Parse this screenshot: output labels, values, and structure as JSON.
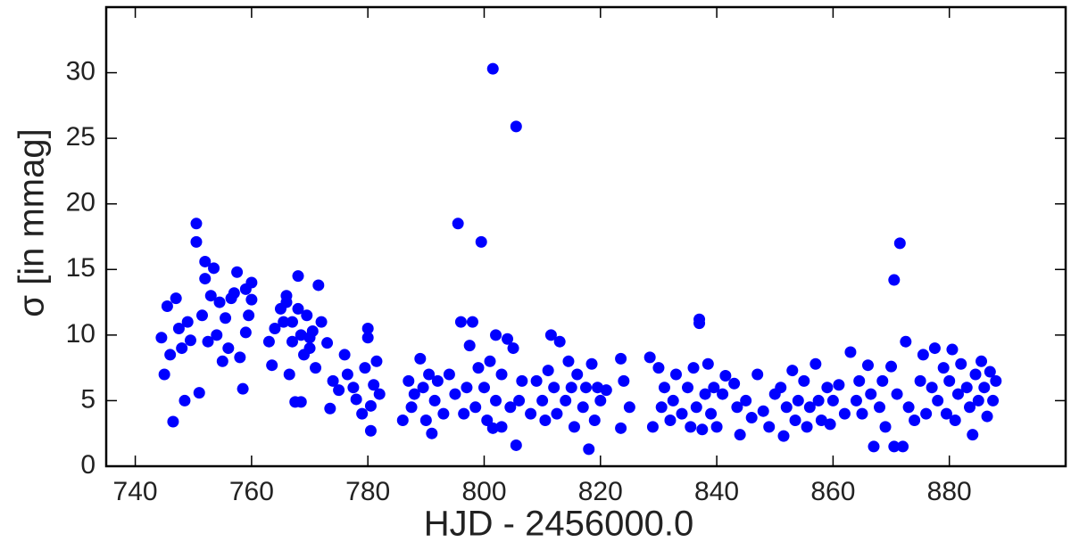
{
  "chart_data": {
    "type": "scatter",
    "xlabel": "HJD - 2456000.0",
    "ylabel": "σ [in mmag]",
    "color": "#0000ff",
    "xlim": [
      735,
      900
    ],
    "xticks": [
      740,
      760,
      780,
      800,
      820,
      840,
      860,
      880
    ],
    "ylim": [
      0,
      35
    ],
    "yticks": [
      0,
      5,
      10,
      15,
      20,
      25,
      30
    ],
    "x": [
      744.5,
      745,
      745.5,
      746,
      746.5,
      747,
      747.5,
      748,
      748.5,
      749,
      749.5,
      750.5,
      750.5,
      751,
      751.5,
      752,
      752,
      752.5,
      753,
      753.5,
      754,
      754.5,
      755,
      755.5,
      756,
      756.5,
      757,
      757.5,
      758,
      758.5,
      759,
      759.5,
      760,
      759,
      760,
      763,
      763.5,
      764,
      765,
      765.5,
      766,
      766.5,
      767,
      767.5,
      768,
      768,
      768.5,
      769,
      769.5,
      770,
      770.5,
      771,
      771.5,
      772,
      768.5,
      766,
      767,
      770,
      773,
      773.5,
      774,
      775,
      776,
      776.5,
      777.5,
      778,
      779,
      779.5,
      780,
      780,
      780.5,
      781,
      781.5,
      782,
      780.5,
      786,
      787,
      787.5,
      788,
      789,
      789.5,
      790,
      790.5,
      791,
      791.5,
      792,
      793,
      794,
      795,
      795.5,
      796,
      796.5,
      797,
      797.5,
      798,
      798.5,
      799,
      799.5,
      800,
      800.5,
      801,
      801.5,
      801.5,
      802,
      802,
      803,
      803,
      804,
      804.5,
      805,
      805.5,
      805.5,
      806,
      806.5,
      808,
      809,
      810,
      810.5,
      811,
      811.5,
      812,
      812.5,
      813,
      814,
      814.5,
      815,
      815.5,
      816,
      817,
      817.5,
      818,
      818.5,
      819,
      819.5,
      820,
      821,
      823.5,
      823.5,
      824,
      825,
      828.5,
      829,
      830,
      830.5,
      831,
      832,
      832.5,
      833,
      834,
      835,
      835.5,
      836,
      836.5,
      837,
      837,
      837.5,
      838,
      838.5,
      839,
      839.5,
      840,
      841,
      841.5,
      843,
      843.5,
      844,
      845,
      846,
      847,
      848,
      849,
      850,
      851,
      851.5,
      852,
      853,
      853.5,
      854,
      855,
      855.5,
      856,
      857,
      857.5,
      858,
      859,
      859.5,
      860,
      861,
      862,
      863,
      864,
      864.5,
      865,
      866,
      866.5,
      867,
      868,
      868.5,
      869,
      870,
      870.5,
      870.5,
      871,
      871.5,
      872,
      872.5,
      873,
      874,
      875,
      875.5,
      876,
      877,
      877.5,
      878,
      879,
      879.5,
      880,
      880.5,
      881,
      881.5,
      882,
      883,
      883.5,
      884,
      884.5,
      885,
      885.5,
      886,
      886.5,
      887,
      887.5,
      888
    ],
    "values": [
      9.8,
      7,
      12.2,
      8.5,
      3.4,
      12.8,
      10.5,
      9,
      5,
      11,
      9.6,
      18.5,
      17.1,
      5.6,
      11.5,
      14.3,
      15.6,
      9.5,
      13,
      15.1,
      10,
      12.5,
      8,
      11.3,
      9,
      12.8,
      13.2,
      14.8,
      8.3,
      5.9,
      13.5,
      11.5,
      12.7,
      10.2,
      14,
      9.5,
      7.7,
      10.5,
      12,
      11,
      13,
      7,
      9.5,
      4.9,
      14.5,
      12,
      10,
      8.5,
      11.5,
      9,
      10.3,
      7.5,
      13.8,
      11,
      4.9,
      12.5,
      11,
      9.8,
      9.4,
      4.4,
      6.5,
      5.8,
      8.5,
      7,
      6,
      5.1,
      4,
      7.5,
      10.5,
      9.8,
      2.7,
      6.2,
      8,
      5.5,
      4.6,
      3.5,
      6.5,
      4.5,
      5.5,
      8.2,
      6,
      3.5,
      7,
      2.5,
      5,
      6.5,
      4,
      7,
      5.5,
      18.5,
      11,
      4,
      6,
      9.2,
      11,
      4.5,
      7.5,
      17.1,
      6,
      3.5,
      8,
      30.3,
      2.9,
      10,
      5,
      7,
      3,
      9.7,
      4.5,
      9,
      25.9,
      1.6,
      5,
      6.5,
      4,
      6.5,
      5,
      3.5,
      7.3,
      10,
      6,
      4,
      9.5,
      5,
      8,
      6,
      3,
      7,
      4.5,
      6,
      1.3,
      7.8,
      3.5,
      6,
      5,
      5.8,
      8.2,
      2.9,
      6.5,
      4.5,
      8.3,
      3,
      7.5,
      4.5,
      6,
      3.5,
      5,
      7,
      4,
      6,
      3,
      7.5,
      4.5,
      11.2,
      10.9,
      2.8,
      5.5,
      7.8,
      4,
      6,
      3,
      5.5,
      6.9,
      6.3,
      4.5,
      2.4,
      5,
      3.7,
      7,
      4.2,
      3,
      5.5,
      6,
      2.3,
      4.5,
      7.3,
      3.5,
      5,
      6.5,
      3,
      4.5,
      7.8,
      5,
      3.5,
      6,
      3.2,
      5,
      6.2,
      4,
      8.7,
      5,
      6.5,
      4,
      7.7,
      5.5,
      1.5,
      4.5,
      6.5,
      3,
      7.6,
      1.5,
      14.2,
      5.5,
      17,
      1.5,
      9.5,
      4.5,
      3.5,
      6.5,
      8.5,
      4,
      6,
      9,
      5,
      7.5,
      4,
      6.5,
      8.9,
      3.5,
      5.5,
      7.8,
      6,
      4.5,
      2.4,
      7,
      5,
      8,
      6,
      3.8,
      7.2,
      5,
      6.5
    ]
  }
}
